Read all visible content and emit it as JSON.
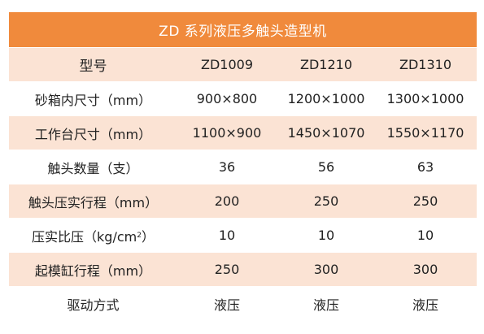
{
  "title": "ZD 系列液压多触头造型机",
  "header": {
    "label": "型号",
    "models": [
      "ZD1009",
      "ZD1210",
      "ZD1310"
    ]
  },
  "rows": [
    {
      "label": "砂箱内尺寸（mm）",
      "values": [
        "900×800",
        "1200×1000",
        "1300×1000"
      ]
    },
    {
      "label": "工作台尺寸（mm）",
      "values": [
        "1100×900",
        "1450×1070",
        "1550×1170"
      ]
    },
    {
      "label": "触头数量（支）",
      "values": [
        "36",
        "56",
        "63"
      ]
    },
    {
      "label": "触头压实行程（mm）",
      "values": [
        "200",
        "250",
        "250"
      ]
    },
    {
      "label_main": "压实比压（kg/cm",
      "label_sup": "2",
      "label_end": "）",
      "values": [
        "10",
        "10",
        "10"
      ]
    },
    {
      "label": "起模缸行程（mm）",
      "values": [
        "250",
        "300",
        "300"
      ]
    },
    {
      "label": "驱动方式",
      "values": [
        "液压",
        "液压",
        "液压"
      ]
    }
  ],
  "colors": {
    "title_bg": "#f08a3c",
    "shaded_row": "#fbe3d4",
    "plain_row": "#ffffff"
  }
}
